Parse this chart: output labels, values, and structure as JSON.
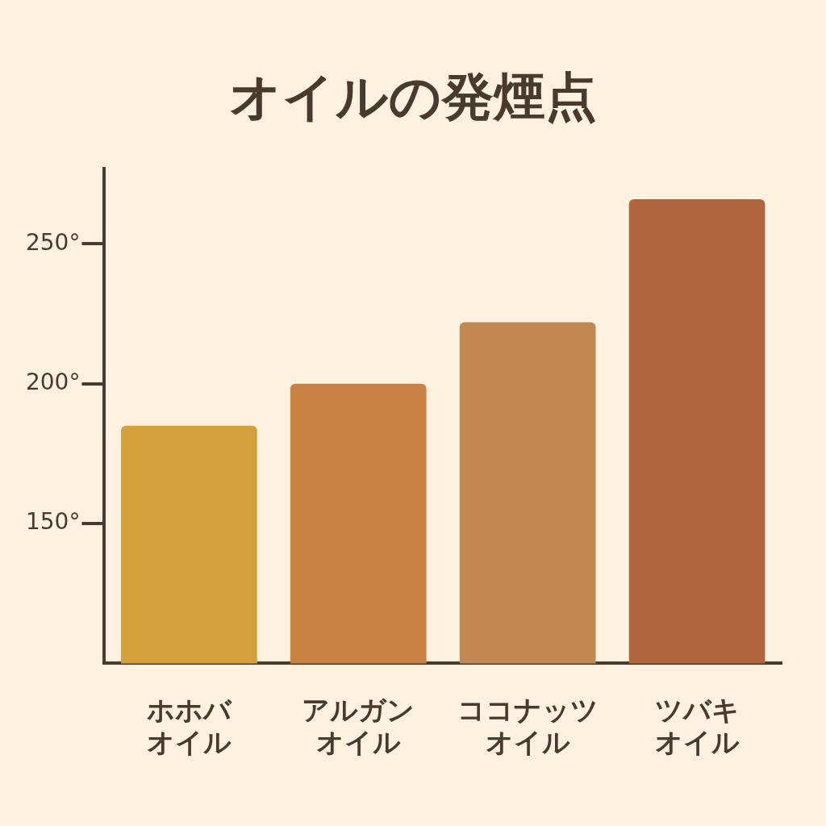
{
  "chart_data": {
    "type": "bar",
    "title": "オイルの発煙点",
    "categories": [
      "ホホバオイル",
      "アルガンオイル",
      "ココナッツオイル",
      "ツバキオイル"
    ],
    "values": [
      185,
      200,
      222,
      266
    ],
    "colors": [
      "#d3a03c",
      "#c98142",
      "#c08a52",
      "#b0653c"
    ],
    "ylim": [
      100,
      277
    ],
    "yticks": [
      {
        "value": 150,
        "label": "150°"
      },
      {
        "value": 200,
        "label": "200°"
      },
      {
        "value": 250,
        "label": "250°"
      }
    ],
    "grid": false,
    "legend": false
  }
}
